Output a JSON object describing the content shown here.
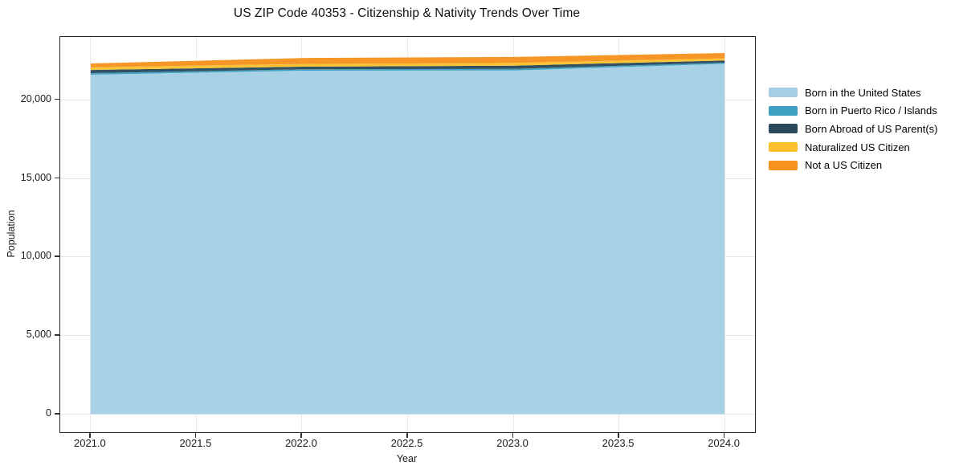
{
  "page": {
    "background": "#ffffff"
  },
  "chart_data": {
    "type": "area",
    "stacked": true,
    "title": "US ZIP Code 40353 - Citizenship & Nativity Trends Over Time",
    "xlabel": "Year",
    "ylabel": "Population",
    "x": [
      2021,
      2022,
      2023,
      2024
    ],
    "series": [
      {
        "name": "Born in the United States",
        "color": "#a6cfe4",
        "values": [
          21600,
          21855,
          21870,
          22290
        ]
      },
      {
        "name": "Born in Puerto Rico / Islands",
        "color": "#3da0c1",
        "values": [
          100,
          85,
          100,
          75
        ]
      },
      {
        "name": "Born Abroad of US Parent(s)",
        "color": "#2a4a5c",
        "values": [
          200,
          170,
          205,
          135
        ]
      },
      {
        "name": "Naturalized US Citizen",
        "color": "#fcc12d",
        "values": [
          170,
          170,
          175,
          140
        ]
      },
      {
        "name": "Not a US Citizen",
        "color": "#f6921e",
        "values": [
          245,
          380,
          375,
          340
        ]
      }
    ],
    "totals": [
      22315,
      22660,
      22725,
      22980
    ],
    "xticks": [
      2021.0,
      2021.5,
      2022.0,
      2022.5,
      2023.0,
      2023.5,
      2024.0
    ],
    "xtick_labels": [
      "2021.0",
      "2021.5",
      "2022.0",
      "2022.5",
      "2023.0",
      "2023.5",
      "2024.0"
    ],
    "yticks": [
      0,
      5000,
      10000,
      15000,
      20000
    ],
    "ytick_labels": [
      "0",
      "5,000",
      "10,000",
      "15,000",
      "20,000"
    ],
    "xlim": [
      2020.856,
      2024.144
    ],
    "ylim": [
      -1150,
      24000
    ],
    "grid": true,
    "legend_position": "right-outside",
    "area_opacity": 0.96,
    "colors": {
      "spine": "#262626",
      "grid": "#e9e9e9",
      "text": "#1a1a1a"
    }
  }
}
